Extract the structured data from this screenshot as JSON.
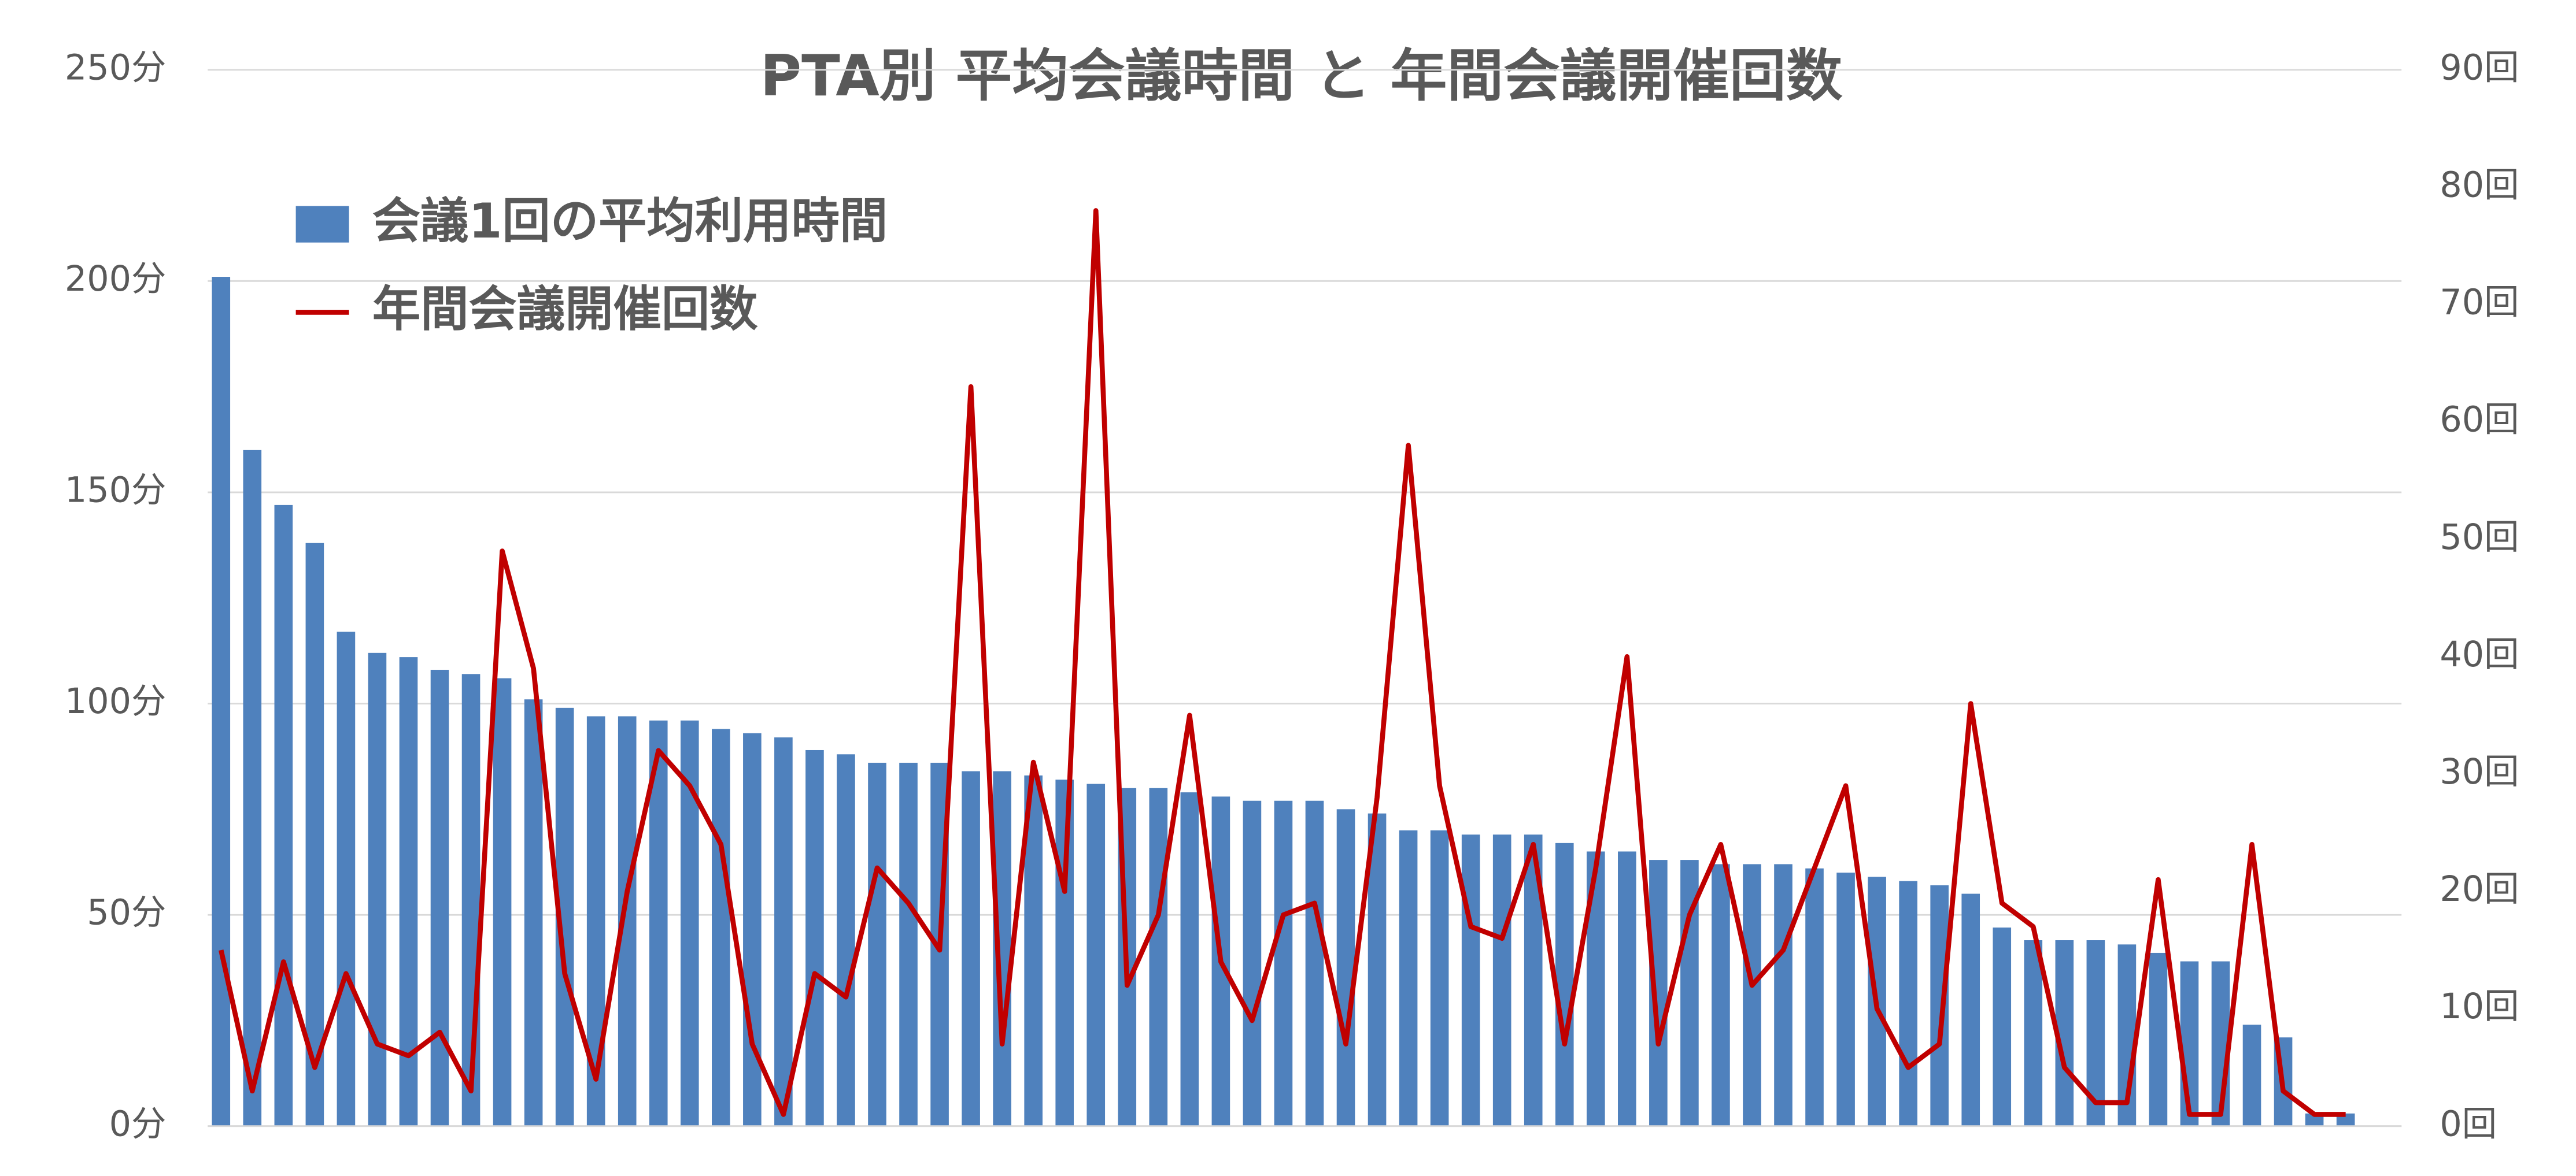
{
  "chart_data": {
    "type": "bar-line",
    "title": "PTA別 平均会議時間 と 年間会議開催回数",
    "series": [
      {
        "name": "会議1回の平均利用時間",
        "type": "bar",
        "color": "#4f81bd",
        "values": [
          201,
          160,
          147,
          138,
          117,
          112,
          111,
          108,
          107,
          106,
          101,
          99,
          97,
          97,
          96,
          96,
          94,
          93,
          92,
          89,
          88,
          86,
          86,
          86,
          84,
          84,
          83,
          82,
          81,
          80,
          80,
          79,
          78,
          77,
          77,
          77,
          75,
          74,
          70,
          70,
          69,
          69,
          69,
          67,
          65,
          65,
          63,
          63,
          62,
          62,
          62,
          61,
          60,
          59,
          58,
          57,
          55,
          47,
          44,
          44,
          44,
          43,
          41,
          39,
          39,
          24,
          21,
          3,
          3
        ]
      },
      {
        "name": "年間会議開催回数",
        "type": "line",
        "axis": "y2",
        "color": "#c00000",
        "values": [
          15,
          3,
          14,
          5,
          13,
          7,
          6,
          8,
          3,
          49,
          39,
          13,
          4,
          20,
          32,
          29,
          24,
          7,
          1,
          13,
          11,
          22,
          19,
          15,
          63,
          7,
          31,
          20,
          78,
          12,
          18,
          35,
          14,
          9,
          18,
          19,
          7,
          28,
          58,
          29,
          17,
          16,
          24,
          7,
          22,
          40,
          7,
          18,
          24,
          12,
          15,
          22,
          29,
          10,
          5,
          7,
          36,
          19,
          17,
          5,
          2,
          2,
          21,
          1,
          1,
          24,
          3,
          1,
          1
        ]
      }
    ],
    "ylim": [
      0,
      250
    ],
    "yticks": [
      {
        "value": 0,
        "label": "0分"
      },
      {
        "value": 50,
        "label": "50分"
      },
      {
        "value": 100,
        "label": "100分"
      },
      {
        "value": 150,
        "label": "150分"
      },
      {
        "value": 200,
        "label": "200分"
      },
      {
        "value": 250,
        "label": "250分"
      }
    ],
    "y2lim": [
      0,
      90
    ],
    "y2ticks": [
      {
        "value": 0,
        "label": "0回"
      },
      {
        "value": 10,
        "label": "10回"
      },
      {
        "value": 20,
        "label": "20回"
      },
      {
        "value": 30,
        "label": "30回"
      },
      {
        "value": 40,
        "label": "40回"
      },
      {
        "value": 50,
        "label": "50回"
      },
      {
        "value": 60,
        "label": "60回"
      },
      {
        "value": 70,
        "label": "70回"
      },
      {
        "value": 80,
        "label": "80回"
      },
      {
        "value": 90,
        "label": "90回"
      }
    ],
    "grid": true,
    "legend": "top-left"
  }
}
